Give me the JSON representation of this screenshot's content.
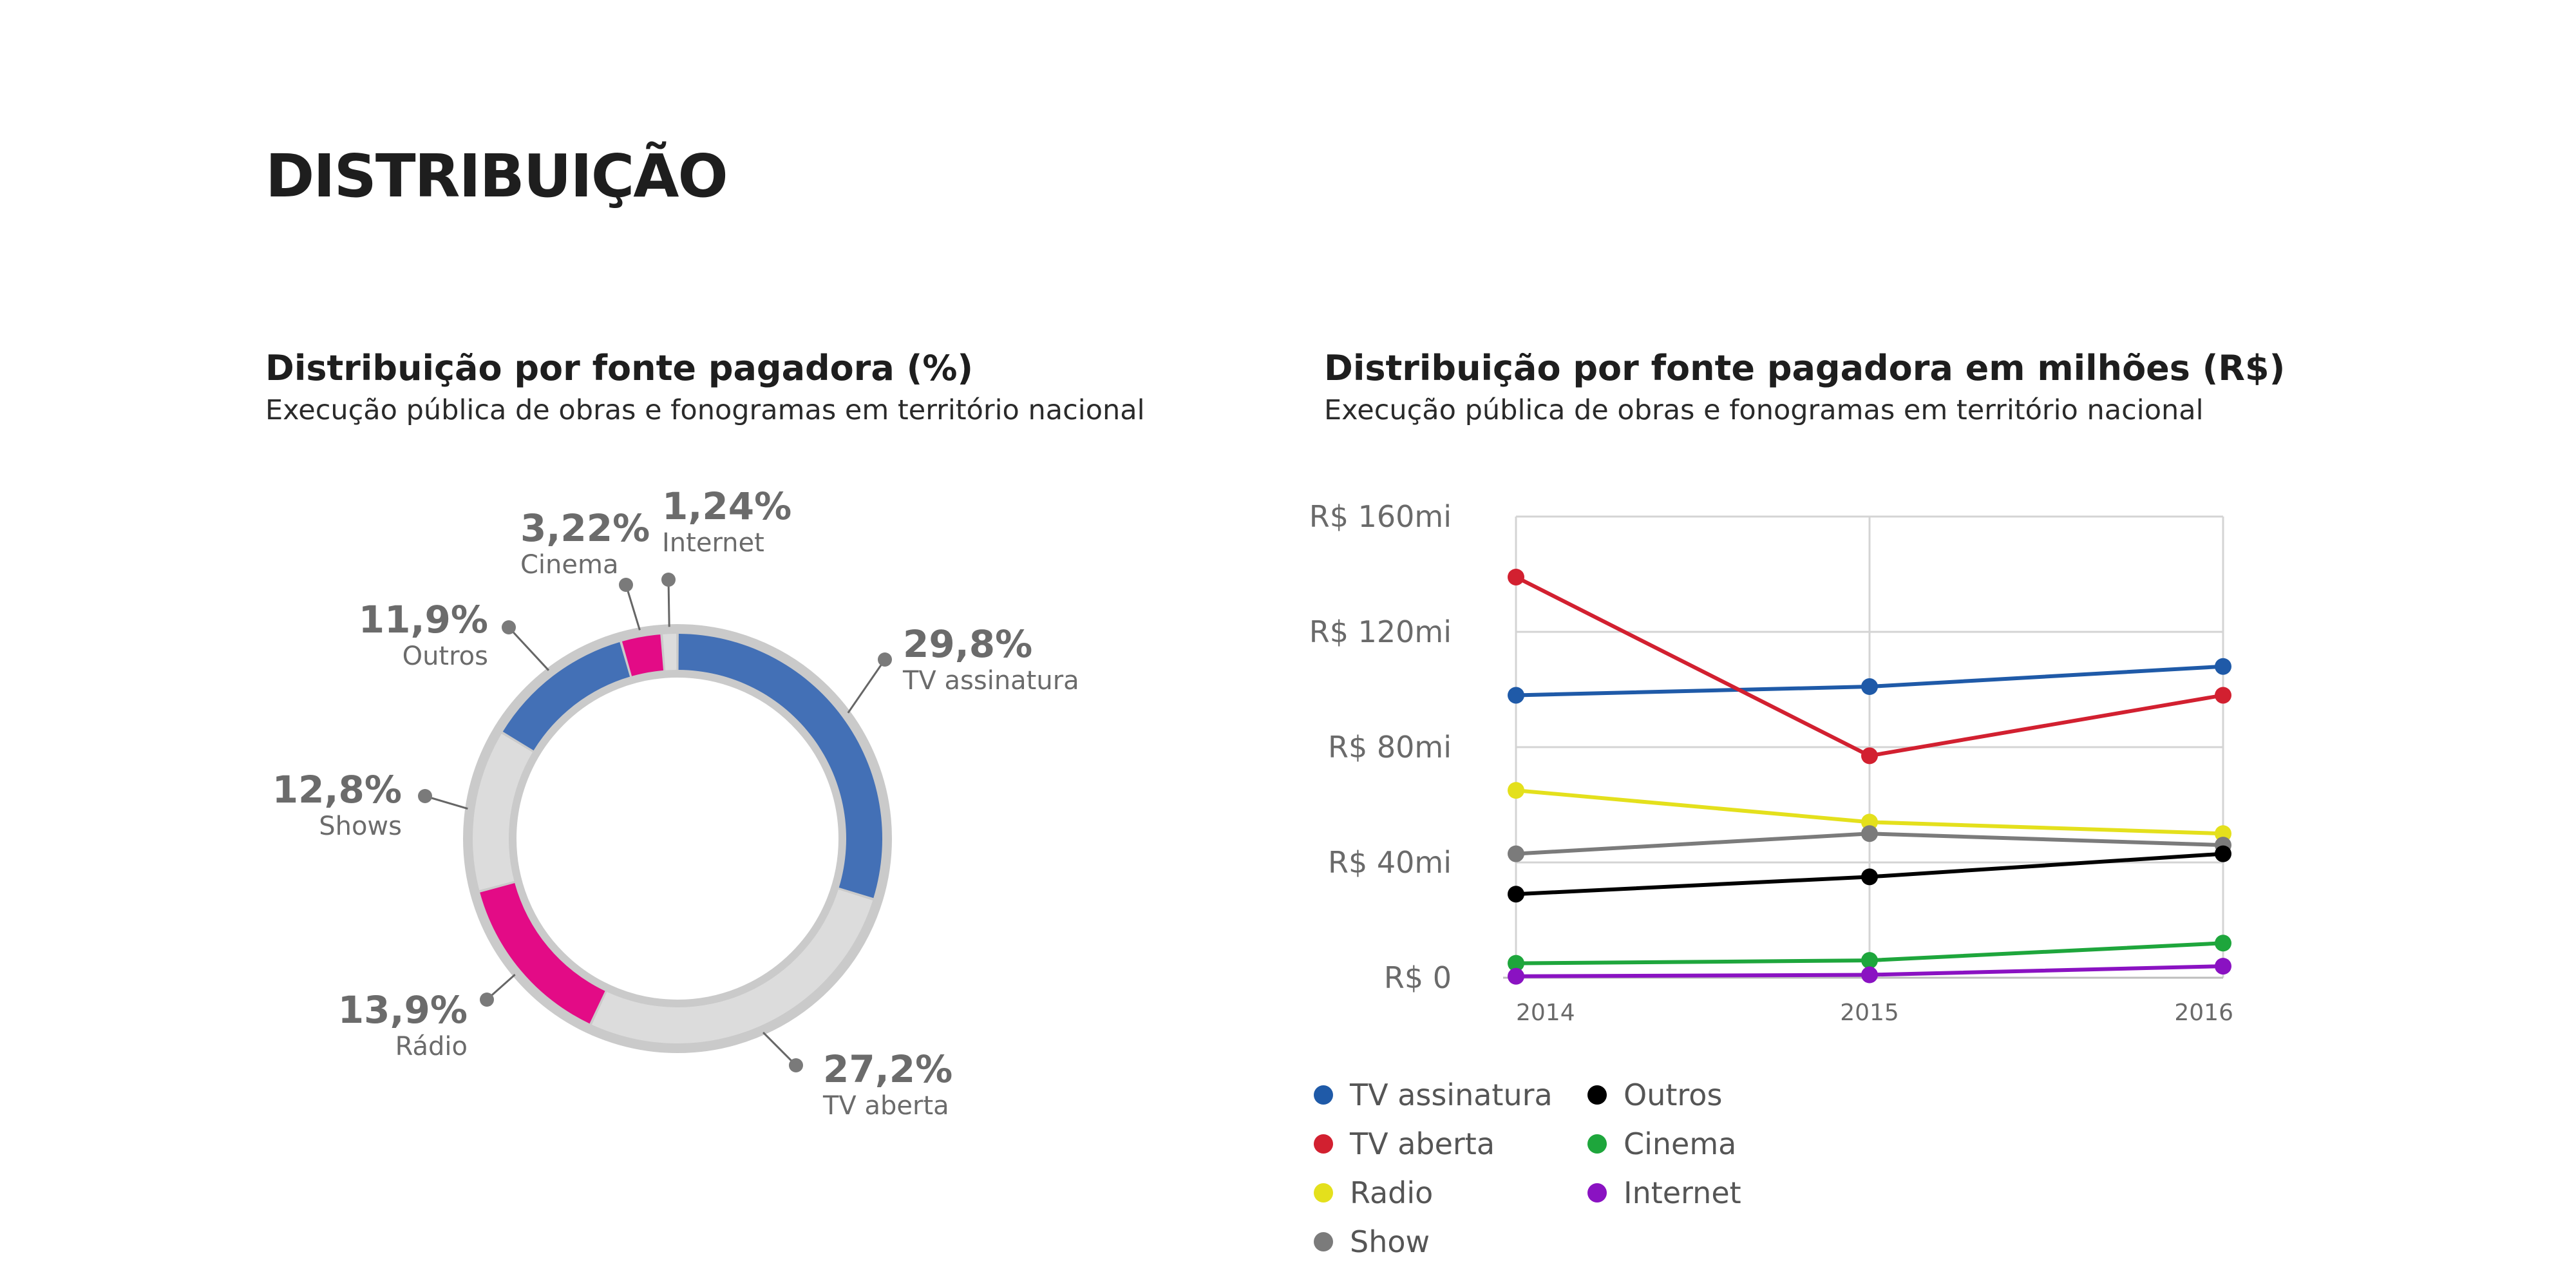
{
  "page": {
    "title": "DISTRIBUIÇÃO"
  },
  "donut_panel": {
    "title": "Distribuição por fonte pagadora (%)",
    "subtitle": "Execução pública de obras e fonogramas em território nacional"
  },
  "line_panel": {
    "title": "Distribuição por fonte pagadora em milhões (R$)",
    "subtitle": "Execução pública de obras e fonogramas em território nacional"
  },
  "chart_data": [
    {
      "type": "pie",
      "title": "Distribuição por fonte pagadora (%)",
      "subtitle": "Execução pública de obras e fonogramas em território nacional",
      "slices": [
        {
          "name": "TV assinatura",
          "label": "29,8%",
          "value": 29.8,
          "color": "#4370b6"
        },
        {
          "name": "TV aberta",
          "label": "27,2%",
          "value": 27.2,
          "color": "#dcdcdc"
        },
        {
          "name": "Rádio",
          "label": "13,9%",
          "value": 13.9,
          "color": "#e30b86"
        },
        {
          "name": "Shows",
          "label": "12,8%",
          "value": 12.8,
          "color": "#dcdcdc"
        },
        {
          "name": "Outros",
          "label": "11,9%",
          "value": 11.9,
          "color": "#4370b6"
        },
        {
          "name": "Cinema",
          "label": "3,22%",
          "value": 3.22,
          "color": "#e30b86"
        },
        {
          "name": "Internet",
          "label": "1,24%",
          "value": 1.24,
          "color": "#dcdcdc"
        }
      ]
    },
    {
      "type": "line",
      "title": "Distribuição por fonte pagadora em milhões (R$)",
      "subtitle": "Execução pública de obras e fonogramas em território nacional",
      "x": [
        2014,
        2015,
        2016
      ],
      "x_tick_labels": [
        "2014",
        "2015",
        "2016"
      ],
      "y_ticks": [
        0,
        40,
        80,
        120,
        160
      ],
      "y_tick_labels": [
        "R$ 0",
        "R$ 40mi",
        "R$ 80mi",
        "R$ 120mi",
        "R$ 160mi"
      ],
      "ylim": [
        0,
        160
      ],
      "grid": true,
      "legend_position": "bottom-left",
      "series": [
        {
          "name": "TV assinatura",
          "color": "#1f5aa8",
          "values": [
            98,
            101,
            108
          ]
        },
        {
          "name": "TV aberta",
          "color": "#d22030",
          "values": [
            139,
            77,
            98
          ]
        },
        {
          "name": "Radio",
          "color": "#e4e01c",
          "values": [
            65,
            54,
            50
          ]
        },
        {
          "name": "Show",
          "color": "#7b7b7b",
          "values": [
            43,
            50,
            46
          ]
        },
        {
          "name": "Outros",
          "color": "#000000",
          "values": [
            29,
            35,
            43
          ]
        },
        {
          "name": "Cinema",
          "color": "#1ea63c",
          "values": [
            5,
            6,
            12
          ]
        },
        {
          "name": "Internet",
          "color": "#8a12c2",
          "values": [
            0.5,
            1,
            4
          ]
        }
      ]
    }
  ]
}
